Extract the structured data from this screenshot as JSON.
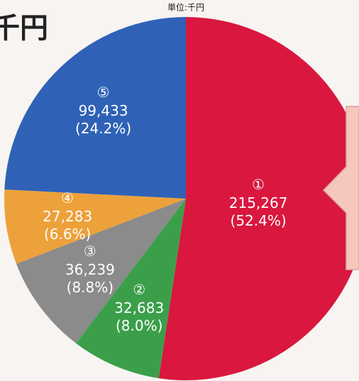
{
  "chart_data": {
    "type": "pie",
    "title": "千円",
    "unit_label": "単位:千円",
    "categories": [
      "①",
      "②",
      "③",
      "④",
      "⑤"
    ],
    "values": [
      215267,
      32683,
      36239,
      27283,
      99433
    ],
    "value_labels": [
      "215,267",
      "32,683",
      "36,239",
      "27,283",
      "99,433"
    ],
    "percents": [
      52.4,
      8.0,
      8.8,
      6.6,
      24.2
    ],
    "percent_labels": [
      "(52.4%)",
      "(8.0%)",
      "(8.8%)",
      "(6.6%)",
      "(24.2%)"
    ],
    "colors": [
      "#d9173f",
      "#3b9f4a",
      "#8b8b8b",
      "#eda13a",
      "#2f62b6"
    ]
  }
}
